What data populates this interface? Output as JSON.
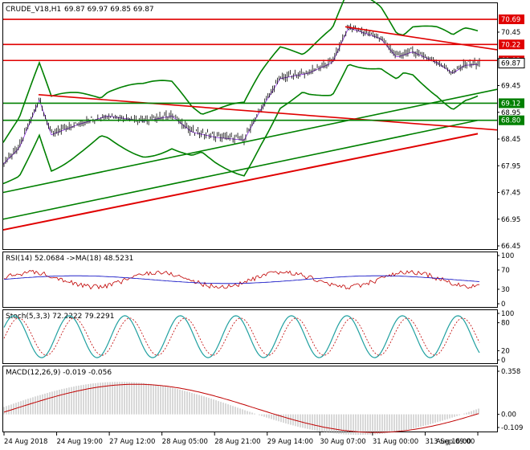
{
  "header": {
    "symbol": "CRUDE_V18,H1",
    "ohlc": "69.87 69.97 69.85 69.87"
  },
  "main": {
    "price_ticks": [
      "70.45",
      "69.95",
      "69.45",
      "68.95",
      "68.45",
      "67.95",
      "67.45",
      "66.95",
      "66.45"
    ],
    "tags": [
      {
        "value": "70.69",
        "color": "#e00000"
      },
      {
        "value": "70.22",
        "color": "#e00000"
      },
      {
        "value": "69.92",
        "color": "#e00000"
      },
      {
        "value": "69.12",
        "color": "#008000"
      },
      {
        "value": "68.80",
        "color": "#008000"
      }
    ],
    "current_price": "69.87"
  },
  "rsi": {
    "label": "RSI(14) 52.0684  ->MA(18) 48.5231",
    "ticks": [
      "100",
      "70",
      "30",
      "0"
    ]
  },
  "stoch": {
    "label": "Stoch(5,3,3) 72.2222 79.2291",
    "ticks": [
      "100",
      "80",
      "20",
      "0"
    ]
  },
  "macd": {
    "label": "MACD(12,26,9) -0.019 -0.056",
    "ticks": [
      "0.358",
      "0.00",
      "-0.109"
    ]
  },
  "time_axis": [
    "24 Aug 2018",
    "24 Aug 19:00",
    "27 Aug 12:00",
    "28 Aug 05:00",
    "28 Aug 21:00",
    "29 Aug 14:00",
    "30 Aug 07:00",
    "31 Aug 00:00",
    "31 Aug 16:00",
    "3 Sep 09:00"
  ],
  "chart_data": {
    "type": "line",
    "symbol": "CRUDE_V18",
    "timeframe": "H1",
    "price_range": [
      66.4,
      70.8
    ],
    "x": [
      "24 Aug 2018",
      "24 Aug 19:00",
      "27 Aug 12:00",
      "28 Aug 05:00",
      "28 Aug 21:00",
      "29 Aug 14:00",
      "30 Aug 07:00",
      "31 Aug 00:00",
      "31 Aug 16:00",
      "3 Sep 09:00"
    ],
    "series": [
      {
        "values": [
          68.0,
          68.75,
          68.8,
          68.9,
          68.45,
          69.5,
          70.3,
          70.05,
          69.6,
          69.87
        ]
      }
    ],
    "horizontal_levels": [
      70.69,
      70.22,
      69.92,
      69.12,
      68.8
    ],
    "indicators": {
      "rsi": {
        "value": 52.0684,
        "ma": 48.5231
      },
      "stoch": {
        "k": 72.2222,
        "d": 79.2291
      },
      "macd": {
        "main": -0.019,
        "signal": -0.056
      }
    }
  }
}
